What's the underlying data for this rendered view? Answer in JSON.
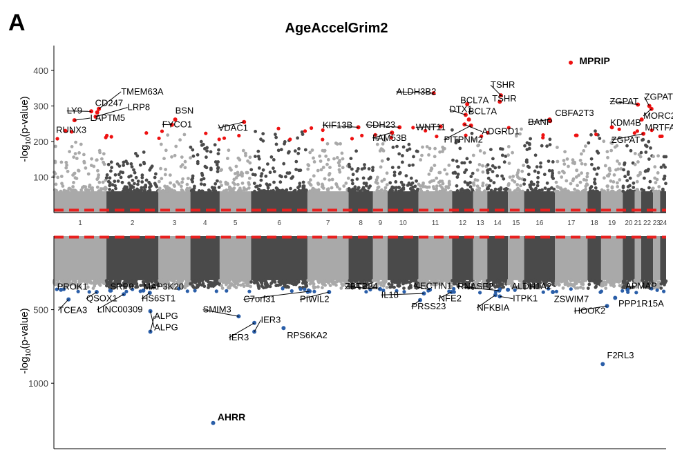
{
  "figure": {
    "panel_letter": "A",
    "title": "AgeAccelGrim2"
  },
  "colors": {
    "dark": "#4a4a4a",
    "light": "#a9a9a9",
    "hit_top": "#ee1111",
    "hit_bottom": "#2a5ea8",
    "threshold": "#e8201f"
  },
  "chart_data": [
    {
      "type": "scatter",
      "subtype": "manhattan",
      "title": "AgeAccelGrim2",
      "ylabel_prefix": "-log",
      "ylabel_sub": "10",
      "ylabel_suffix": "(p-value)",
      "ylim": [
        0,
        470
      ],
      "yticks": [
        100,
        200,
        300,
        400
      ],
      "threshold": 7,
      "chromosomes": [
        {
          "label": "1",
          "start": 0.0,
          "end": 9.7
        },
        {
          "label": "2",
          "start": 9.7,
          "end": 19.3
        },
        {
          "label": "3",
          "start": 19.3,
          "end": 25.2
        },
        {
          "label": "4",
          "start": 25.2,
          "end": 30.6
        },
        {
          "label": "5",
          "start": 30.6,
          "end": 36.4
        },
        {
          "label": "6",
          "start": 36.4,
          "end": 46.8
        },
        {
          "label": "7",
          "start": 46.8,
          "end": 54.4
        },
        {
          "label": "8",
          "start": 54.4,
          "end": 58.9
        },
        {
          "label": "9",
          "start": 58.9,
          "end": 61.6
        },
        {
          "label": "10",
          "start": 61.6,
          "end": 67.3
        },
        {
          "label": "11",
          "start": 67.3,
          "end": 73.5
        },
        {
          "label": "12",
          "start": 73.5,
          "end": 77.4
        },
        {
          "label": "13",
          "start": 77.4,
          "end": 80.0
        },
        {
          "label": "14",
          "start": 80.0,
          "end": 83.8
        },
        {
          "label": "15",
          "start": 83.8,
          "end": 86.8
        },
        {
          "label": "16",
          "start": 86.8,
          "end": 92.5
        },
        {
          "label": "17",
          "start": 92.5,
          "end": 98.5
        },
        {
          "label": "18",
          "start": 98.5,
          "end": 101.0
        },
        {
          "label": "19",
          "start": 101.0,
          "end": 105.0
        },
        {
          "label": "20",
          "start": 105.0,
          "end": 107.2
        },
        {
          "label": "21",
          "start": 107.2,
          "end": 108.4
        },
        {
          "label": "22",
          "start": 108.4,
          "end": 110.6
        },
        {
          "label": "23",
          "start": 110.6,
          "end": 111.9
        },
        {
          "label": "24",
          "start": 111.9,
          "end": 113.0
        }
      ],
      "hits": [
        {
          "gene": "MPRIP",
          "pos": 95.4,
          "y": 422,
          "bold": true
        },
        {
          "gene": "ALDH3B2",
          "pos": 70.1,
          "y": 336
        },
        {
          "gene": "TSHR",
          "pos": 82.5,
          "y": 330
        },
        {
          "gene": "TSHR",
          "pos": 82.3,
          "y": 312
        },
        {
          "gene": "BCL7A",
          "pos": 76.3,
          "y": 305
        },
        {
          "gene": "BCL7A",
          "pos": 76.6,
          "y": 262
        },
        {
          "gene": "DTX1",
          "pos": 76.0,
          "y": 275
        },
        {
          "gene": "TMEM63A",
          "pos": 8.3,
          "y": 292
        },
        {
          "gene": "CD247",
          "pos": 8.0,
          "y": 282
        },
        {
          "gene": "LY9",
          "pos": 6.9,
          "y": 285
        },
        {
          "gene": "LRP8",
          "pos": 7.7,
          "y": 270
        },
        {
          "gene": "LAPTM5",
          "pos": 3.8,
          "y": 260
        },
        {
          "gene": "RUNX3",
          "pos": 2.1,
          "y": 230
        },
        {
          "gene": "BSN",
          "pos": 22.4,
          "y": 262
        },
        {
          "gene": "FYCO1",
          "pos": 21.8,
          "y": 247
        },
        {
          "gene": "VDAC1",
          "pos": 35.1,
          "y": 255
        },
        {
          "gene": "KIF13B",
          "pos": 56.2,
          "y": 240
        },
        {
          "gene": "CDH23",
          "pos": 63.8,
          "y": 240
        },
        {
          "gene": "WNT11",
          "pos": 71.4,
          "y": 242
        },
        {
          "gene": "FAM53B",
          "pos": 62.4,
          "y": 225
        },
        {
          "gene": "PITPNM2",
          "pos": 77.0,
          "y": 245
        },
        {
          "gene": "ADGRD1",
          "pos": 75.8,
          "y": 248
        },
        {
          "gene": "BANP",
          "pos": 91.5,
          "y": 262
        },
        {
          "gene": "CBFA2T3",
          "pos": 91.6,
          "y": 258
        },
        {
          "gene": "ZGPAT",
          "pos": 107.8,
          "y": 304
        },
        {
          "gene": "ZGPAT",
          "pos": 109.9,
          "y": 300
        },
        {
          "gene": "MORC2",
          "pos": 110.3,
          "y": 292
        },
        {
          "gene": "KDM4B",
          "pos": 103.0,
          "y": 240
        },
        {
          "gene": "MRTFA",
          "pos": 108.5,
          "y": 262
        },
        {
          "gene": "ZGPAT",
          "pos": 108.8,
          "y": 222
        }
      ],
      "labels_top": [
        {
          "text": "MPRIP",
          "pos": 97.0,
          "y": 425,
          "bold": true
        },
        {
          "text": "ALDH3B2",
          "pos": 63.2,
          "y": 340
        },
        {
          "text": "TSHR",
          "pos": 80.6,
          "y": 359
        },
        {
          "text": "TSHR",
          "pos": 80.9,
          "y": 320
        },
        {
          "text": "BCL7A",
          "pos": 75.0,
          "y": 316
        },
        {
          "text": "BCL7A",
          "pos": 76.5,
          "y": 285
        },
        {
          "text": "DTX1",
          "pos": 73.0,
          "y": 290
        },
        {
          "text": "TMEM63A",
          "pos": 12.4,
          "y": 340
        },
        {
          "text": "CD247",
          "pos": 7.6,
          "y": 308
        },
        {
          "text": "LY9",
          "pos": 2.4,
          "y": 286
        },
        {
          "text": "LRP8",
          "pos": 13.6,
          "y": 296
        },
        {
          "text": "LAPTM5",
          "pos": 6.7,
          "y": 266
        },
        {
          "text": "RUNX3",
          "pos": 0.4,
          "y": 232
        },
        {
          "text": "BSN",
          "pos": 22.4,
          "y": 286
        },
        {
          "text": "FYCO1",
          "pos": 20.0,
          "y": 248
        },
        {
          "text": "VDAC1",
          "pos": 30.3,
          "y": 238
        },
        {
          "text": "KIF13B",
          "pos": 49.6,
          "y": 246
        },
        {
          "text": "CDH23",
          "pos": 57.6,
          "y": 247
        },
        {
          "text": "WNT11",
          "pos": 66.8,
          "y": 240
        },
        {
          "text": "FAM53B",
          "pos": 58.8,
          "y": 210
        },
        {
          "text": "PITPNM2",
          "pos": 72.0,
          "y": 205
        },
        {
          "text": "ADGRD1",
          "pos": 79.0,
          "y": 228
        },
        {
          "text": "BANP",
          "pos": 87.5,
          "y": 254
        },
        {
          "text": "CBFA2T3",
          "pos": 92.5,
          "y": 280
        },
        {
          "text": "ZGPAT",
          "pos": 102.6,
          "y": 313
        },
        {
          "text": "ZGPAT",
          "pos": 109.0,
          "y": 325
        },
        {
          "text": "MORC2",
          "pos": 108.8,
          "y": 272
        },
        {
          "text": "KDM4B",
          "pos": 102.7,
          "y": 252
        },
        {
          "text": "MRTFA",
          "pos": 109.1,
          "y": 239
        },
        {
          "text": "ZGPAT",
          "pos": 102.9,
          "y": 204
        }
      ]
    },
    {
      "type": "scatter",
      "subtype": "manhattan-inverted",
      "ylabel_prefix": "-log",
      "ylabel_sub": "10",
      "ylabel_suffix": "(p-value)",
      "ylim": [
        0,
        1445
      ],
      "yticks": [
        500,
        1000
      ],
      "threshold": 7,
      "hits": [
        {
          "gene": "AHRR",
          "pos": 29.4,
          "y": 1270,
          "bold": true
        },
        {
          "gene": "F2RL3",
          "pos": 101.3,
          "y": 870
        },
        {
          "gene": "IER3",
          "pos": 37.0,
          "y": 650
        },
        {
          "gene": "IER3",
          "pos": 37.0,
          "y": 590
        },
        {
          "gene": "RPS6KA2",
          "pos": 42.4,
          "y": 625
        },
        {
          "gene": "SMIM3",
          "pos": 34.1,
          "y": 545
        },
        {
          "gene": "ALPG",
          "pos": 17.8,
          "y": 650
        },
        {
          "gene": "ALPG",
          "pos": 17.8,
          "y": 510
        },
        {
          "gene": "TCEA3",
          "pos": 2.7,
          "y": 430
        },
        {
          "gene": "PROK1",
          "pos": 1.3,
          "y": 365
        },
        {
          "gene": "QSOX1",
          "pos": 7.9,
          "y": 380
        },
        {
          "gene": "LINC00309",
          "pos": 12.9,
          "y": 395
        },
        {
          "gene": "SRP9",
          "pos": 10.4,
          "y": 370
        },
        {
          "gene": "MAP3K20",
          "pos": 16.5,
          "y": 370
        },
        {
          "gene": "HS6ST1",
          "pos": 17.7,
          "y": 385
        },
        {
          "gene": "C7orf31",
          "pos": 47.2,
          "y": 375
        },
        {
          "gene": "PIWIL2",
          "pos": 50.8,
          "y": 380
        },
        {
          "gene": "ZBTB34",
          "pos": 60.2,
          "y": 360
        },
        {
          "gene": "IL18",
          "pos": 68.3,
          "y": 390
        },
        {
          "gene": "PRSS23",
          "pos": 67.6,
          "y": 435
        },
        {
          "gene": "NECTIN1",
          "pos": 69.4,
          "y": 365
        },
        {
          "gene": "RNASE2",
          "pos": 82.2,
          "y": 370
        },
        {
          "gene": "NFE2",
          "pos": 73.4,
          "y": 380
        },
        {
          "gene": "NFKBIA",
          "pos": 81.5,
          "y": 400
        },
        {
          "gene": "ITPK1",
          "pos": 82.3,
          "y": 410
        },
        {
          "gene": "ALDH1A2",
          "pos": 83.8,
          "y": 365
        },
        {
          "gene": "ZSWIM7",
          "pos": 92.1,
          "y": 380
        },
        {
          "gene": "HOOK2",
          "pos": 102.1,
          "y": 475
        },
        {
          "gene": "PPP1R15A",
          "pos": 103.6,
          "y": 420
        },
        {
          "gene": "APMAP",
          "pos": 105.9,
          "y": 365
        }
      ],
      "labels_bottom": [
        {
          "text": "AHRR",
          "pos": 30.2,
          "y": 1233,
          "bold": true
        },
        {
          "text": "F2RL3",
          "pos": 102.1,
          "y": 812
        },
        {
          "text": "IER3",
          "pos": 38.2,
          "y": 570
        },
        {
          "text": "IER3",
          "pos": 32.3,
          "y": 690
        },
        {
          "text": "RPS6KA2",
          "pos": 43.0,
          "y": 675
        },
        {
          "text": "SMIM3",
          "pos": 27.5,
          "y": 500
        },
        {
          "text": "ALPG",
          "pos": 18.5,
          "y": 545
        },
        {
          "text": "ALPG",
          "pos": 18.5,
          "y": 622
        },
        {
          "text": "TCEA3",
          "pos": 0.8,
          "y": 505
        },
        {
          "text": "PROK1",
          "pos": 0.6,
          "y": 345
        },
        {
          "text": "QSOX1",
          "pos": 6.0,
          "y": 425
        },
        {
          "text": "LINC00309",
          "pos": 8.0,
          "y": 500
        },
        {
          "text": "SRP9",
          "pos": 10.4,
          "y": 345
        },
        {
          "text": "MAP3K20",
          "pos": 16.5,
          "y": 345
        },
        {
          "text": "HS6ST1",
          "pos": 16.2,
          "y": 425
        },
        {
          "text": "C7orf31",
          "pos": 35.0,
          "y": 430
        },
        {
          "text": "PIWIL2",
          "pos": 45.4,
          "y": 430
        },
        {
          "text": "ZBTB34",
          "pos": 53.7,
          "y": 343
        },
        {
          "text": "IL18",
          "pos": 60.4,
          "y": 400
        },
        {
          "text": "PRSS23",
          "pos": 66.0,
          "y": 478
        },
        {
          "text": "NECTIN1",
          "pos": 66.4,
          "y": 340
        },
        {
          "text": "RNASE2",
          "pos": 74.5,
          "y": 343
        },
        {
          "text": "NFE2",
          "pos": 71.0,
          "y": 425
        },
        {
          "text": "NFKBIA",
          "pos": 78.1,
          "y": 487
        },
        {
          "text": "ITPK1",
          "pos": 84.7,
          "y": 425
        },
        {
          "text": "ALDH1A2",
          "pos": 84.5,
          "y": 343
        },
        {
          "text": "ZSWIM7",
          "pos": 92.3,
          "y": 430
        },
        {
          "text": "HOOK2",
          "pos": 96.0,
          "y": 510
        },
        {
          "text": "PPP1R15A",
          "pos": 104.2,
          "y": 460
        },
        {
          "text": "APMAP",
          "pos": 105.5,
          "y": 340
        }
      ]
    }
  ]
}
